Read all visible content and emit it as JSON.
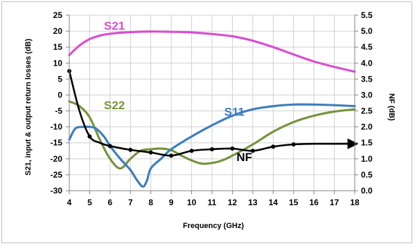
{
  "chart_data": {
    "type": "line",
    "xlabel": "Frequency (GHz)",
    "ylabel_left": "S21, input & output return losses (dB)",
    "ylabel_right": "NF (dB)",
    "xlim": [
      4,
      18
    ],
    "ylim_left": [
      -30,
      25
    ],
    "ylim_right": [
      0,
      5.5
    ],
    "x_ticks": [
      "4",
      "5",
      "6",
      "7",
      "8",
      "9",
      "10",
      "11",
      "12",
      "13",
      "14",
      "15",
      "16",
      "17",
      "18"
    ],
    "y_left_ticks": [
      "25",
      "20",
      "15",
      "10",
      "5",
      "0",
      "-5",
      "-10",
      "-15",
      "-20",
      "-25",
      "-30"
    ],
    "y_right_ticks": [
      "5.5",
      "5.0",
      "4.5",
      "4.0",
      "3.5",
      "3.0",
      "2.5",
      "2.0",
      "1.5",
      "1.0",
      "0.5",
      "0.0"
    ],
    "grid": true,
    "series": [
      {
        "name": "S21",
        "axis": "left",
        "color": "#d94fd0",
        "x": [
          4,
          4.5,
          5,
          5.5,
          6,
          7,
          8,
          9,
          10,
          11,
          12,
          13,
          14,
          15,
          16,
          17,
          18
        ],
        "y": [
          12.5,
          15.5,
          17.5,
          18.6,
          19.2,
          19.7,
          19.9,
          19.8,
          19.6,
          19.1,
          18.4,
          17.0,
          15.0,
          12.7,
          10.5,
          8.8,
          7.3
        ]
      },
      {
        "name": "S22",
        "axis": "left",
        "color": "#76933c",
        "x": [
          4,
          4.5,
          5,
          5.5,
          6,
          6.5,
          7,
          7.5,
          8,
          8.5,
          9,
          9.5,
          10,
          10.5,
          11,
          11.5,
          12,
          13,
          14,
          15,
          16,
          17,
          18
        ],
        "y": [
          -2,
          -3.5,
          -7,
          -14,
          -20,
          -23,
          -20,
          -17.5,
          -17,
          -16.8,
          -17.3,
          -19,
          -20.5,
          -21.5,
          -21.3,
          -20.5,
          -19,
          -15.5,
          -11.5,
          -8.5,
          -6.5,
          -5.2,
          -4.5
        ]
      },
      {
        "name": "S11",
        "axis": "left",
        "color": "#3d7ebd",
        "x": [
          4,
          4.3,
          4.7,
          5,
          5.3,
          5.7,
          6,
          6.5,
          7,
          7.3,
          7.6,
          7.8,
          8,
          8.5,
          9,
          10,
          11,
          12,
          13,
          14,
          15,
          16,
          17,
          18
        ],
        "y": [
          -14,
          -10.5,
          -10,
          -10,
          -10.5,
          -13,
          -16,
          -20,
          -23.5,
          -26.5,
          -28.7,
          -27,
          -23,
          -20,
          -17,
          -13,
          -9.5,
          -6.5,
          -4.5,
          -3.5,
          -3,
          -3,
          -3.2,
          -3.5
        ]
      },
      {
        "name": "NF",
        "axis": "right",
        "color": "#000000",
        "x": [
          4,
          4.5,
          5,
          5.5,
          6,
          7,
          8,
          9,
          10,
          11,
          12,
          13,
          14,
          15,
          16,
          17,
          18
        ],
        "y": [
          3.75,
          2.5,
          1.7,
          1.5,
          1.4,
          1.28,
          1.2,
          1.1,
          1.25,
          1.3,
          1.32,
          1.25,
          1.38,
          1.45,
          1.47,
          1.47,
          1.47
        ],
        "markers_at": [
          4,
          5,
          6,
          7,
          8,
          9,
          10,
          11,
          12,
          13,
          14,
          15
        ]
      }
    ],
    "annotations": [
      {
        "text": "S21",
        "x": 5.7,
        "y": 20.5,
        "axis": "left",
        "color": "#d94fd0"
      },
      {
        "text": "S22",
        "x": 5.7,
        "y": -4.5,
        "axis": "left",
        "color": "#76933c"
      },
      {
        "text": "S11",
        "x": 11.6,
        "y": -6.5,
        "axis": "left",
        "color": "#3d7ebd"
      },
      {
        "text": "NF",
        "x": 12.2,
        "y": 0.93,
        "axis": "right",
        "color": "#000000"
      }
    ]
  }
}
